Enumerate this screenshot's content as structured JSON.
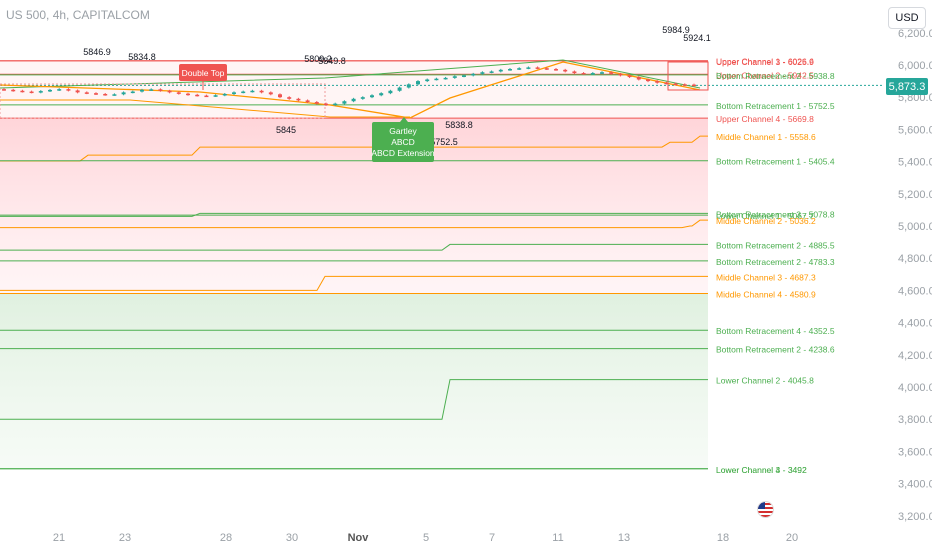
{
  "header": {
    "symbol_title": "US 500, 4h, CAPITALCOM",
    "currency_button": "USD"
  },
  "current_price": {
    "label": "5,873.3",
    "value": 5873.3,
    "color": "#26a69a"
  },
  "colors": {
    "red": "#ef5350",
    "green": "#4caf50",
    "orange": "#ff9800",
    "gray_text": "#9aa0a6"
  },
  "chart_data": {
    "type": "candlestick",
    "title": "US 500, 4h, CAPITALCOM",
    "ylim": [
      3200,
      6200
    ],
    "price_axis_ticks": [
      "6,200.0",
      "6,000.0",
      "5,800.0",
      "5,600.0",
      "5,400.0",
      "5,200.0",
      "5,000.0",
      "4,800.0",
      "4,600.0",
      "4,400.0",
      "4,200.0",
      "4,000.0",
      "3,800.0",
      "3,600.0",
      "3,400.0",
      "3,200.0"
    ],
    "price_axis_values": [
      6200,
      6000,
      5800,
      5600,
      5400,
      5200,
      5000,
      4800,
      4600,
      4400,
      4200,
      4000,
      3800,
      3600,
      3400,
      3200
    ],
    "time_axis_ticks": [
      "21",
      "23",
      "28",
      "30",
      "Nov",
      "5",
      "7",
      "11",
      "13",
      "18",
      "20"
    ],
    "swing_labels": [
      "5846.9",
      "5834.8",
      "5809.2",
      "5849.8",
      "5845",
      "5838.8",
      "5752.5",
      "5984.9",
      "5924.1"
    ],
    "levels": [
      {
        "label": "Upper Channel 1 - 6026.6",
        "value": 6026.6,
        "color": "#ef5350"
      },
      {
        "label": "Upper Channel 3 - 6025.9",
        "value": 6025.9,
        "color": "#ef5350"
      },
      {
        "label": "Upper Channel 2 - 5942.5",
        "value": 5942.5,
        "color": "#ef5350"
      },
      {
        "label": "Bottom Retracement 2 - 5938.8",
        "value": 5938.8,
        "color": "#4caf50"
      },
      {
        "label": "Bottom Retracement 1 - 5752.5",
        "value": 5752.5,
        "color": "#4caf50"
      },
      {
        "label": "Upper Channel 4 - 5669.8",
        "value": 5669.8,
        "color": "#ef5350"
      },
      {
        "label": "Middle Channel 1 - 5558.6",
        "value": 5558.6,
        "color": "#ff9800"
      },
      {
        "label": "Bottom Retracement 1 - 5405.4",
        "value": 5405.4,
        "color": "#4caf50"
      },
      {
        "label": "Bottom Retracement 3 - 5078.8",
        "value": 5078.8,
        "color": "#4caf50"
      },
      {
        "label": "Lower Channel 1 - 5067.7",
        "value": 5067.7,
        "color": "#4caf50"
      },
      {
        "label": "Middle Channel 2 - 5036.2",
        "value": 5036.2,
        "color": "#ff9800"
      },
      {
        "label": "Bottom Retracement 2 - 4885.5",
        "value": 4885.5,
        "color": "#4caf50"
      },
      {
        "label": "Bottom Retracement 2 - 4783.3",
        "value": 4783.3,
        "color": "#4caf50"
      },
      {
        "label": "Middle Channel 3 - 4687.3",
        "value": 4687.3,
        "color": "#ff9800"
      },
      {
        "label": "Middle Channel 4 - 4580.9",
        "value": 4580.9,
        "color": "#ff9800"
      },
      {
        "label": "Bottom Retracement 4 - 4352.5",
        "value": 4352.5,
        "color": "#4caf50"
      },
      {
        "label": "Bottom Retracement 2 - 4238.6",
        "value": 4238.6,
        "color": "#4caf50"
      },
      {
        "label": "Lower Channel 2 - 4045.8",
        "value": 4045.8,
        "color": "#4caf50"
      },
      {
        "label": "Lower Channel 3 - 3492",
        "value": 3492,
        "color": "#4caf50"
      },
      {
        "label": "Lower Channel 4 - 3492",
        "value": 3492,
        "color": "#4caf50"
      }
    ],
    "pattern_labels": {
      "double_top": "Double Top",
      "gartley": [
        "Gartley",
        "ABCD",
        "ABCD Extension"
      ]
    }
  }
}
